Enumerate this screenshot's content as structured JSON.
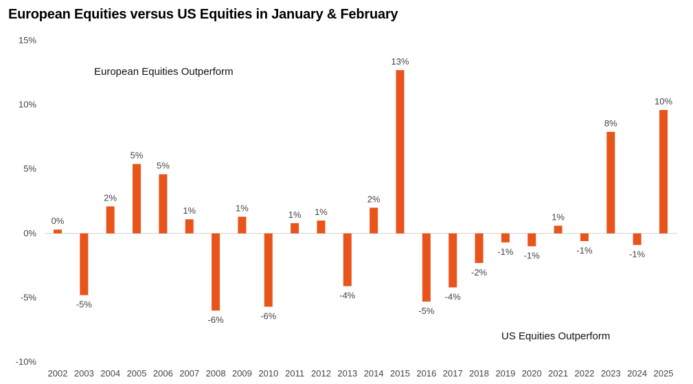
{
  "chart_data": {
    "type": "bar",
    "title": "European Equities versus US Equities in January & February",
    "categories": [
      "2002",
      "2003",
      "2004",
      "2005",
      "2006",
      "2007",
      "2008",
      "2009",
      "2010",
      "2011",
      "2012",
      "2013",
      "2014",
      "2015",
      "2016",
      "2017",
      "2018",
      "2019",
      "2020",
      "2021",
      "2022",
      "2023",
      "2024",
      "2025"
    ],
    "values": [
      0.3,
      -4.8,
      2.1,
      5.4,
      4.6,
      1.1,
      -6.0,
      1.3,
      -5.7,
      0.8,
      1.0,
      -4.1,
      2.0,
      12.7,
      -5.3,
      -4.2,
      -2.3,
      -0.7,
      -1.0,
      0.6,
      -0.6,
      7.9,
      -0.9,
      9.6
    ],
    "data_labels": [
      "0%",
      "-5%",
      "2%",
      "5%",
      "5%",
      "1%",
      "-6%",
      "1%",
      "-6%",
      "1%",
      "1%",
      "-4%",
      "2%",
      "13%",
      "-5%",
      "-4%",
      "-2%",
      "-1%",
      "-1%",
      "1%",
      "-1%",
      "8%",
      "-1%",
      "10%"
    ],
    "y_ticks": [
      15,
      10,
      5,
      0,
      -5,
      -10
    ],
    "y_tick_labels": [
      "15%",
      "10%",
      "5%",
      "0%",
      "-5%",
      "-10%"
    ],
    "ylim": [
      -10,
      15
    ],
    "bar_color": "#e8541a",
    "annotations": {
      "top": "European Equities Outperform",
      "bottom": "US Equities Outperform"
    },
    "xlabel": "",
    "ylabel": "",
    "grid": false,
    "legend": "none"
  }
}
